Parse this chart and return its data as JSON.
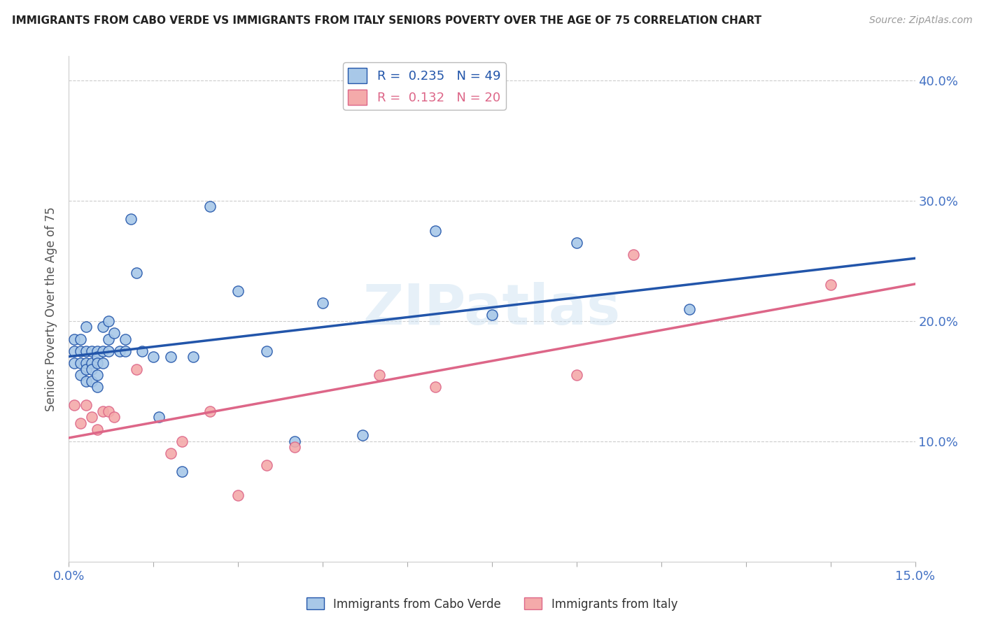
{
  "title": "IMMIGRANTS FROM CABO VERDE VS IMMIGRANTS FROM ITALY SENIORS POVERTY OVER THE AGE OF 75 CORRELATION CHART",
  "source": "Source: ZipAtlas.com",
  "ylabel": "Seniors Poverty Over the Age of 75",
  "xlim": [
    0.0,
    0.15
  ],
  "ylim": [
    0.0,
    0.42
  ],
  "ytick_values": [
    0.0,
    0.1,
    0.2,
    0.3,
    0.4
  ],
  "xtick_values": [
    0.0,
    0.015,
    0.03,
    0.045,
    0.06,
    0.075,
    0.09,
    0.105,
    0.12,
    0.135,
    0.15
  ],
  "cabo_verde_color": "#a8c8e8",
  "italy_color": "#f4aaaa",
  "cabo_verde_line_color": "#2255aa",
  "italy_line_color": "#dd6688",
  "legend_R_cabo": "0.235",
  "legend_N_cabo": "49",
  "legend_R_italy": "0.132",
  "legend_N_italy": "20",
  "cabo_verde_x": [
    0.001,
    0.001,
    0.001,
    0.002,
    0.002,
    0.002,
    0.002,
    0.003,
    0.003,
    0.003,
    0.003,
    0.003,
    0.004,
    0.004,
    0.004,
    0.004,
    0.005,
    0.005,
    0.005,
    0.005,
    0.005,
    0.006,
    0.006,
    0.006,
    0.007,
    0.007,
    0.007,
    0.008,
    0.009,
    0.01,
    0.01,
    0.011,
    0.012,
    0.013,
    0.015,
    0.016,
    0.018,
    0.02,
    0.022,
    0.025,
    0.03,
    0.035,
    0.04,
    0.045,
    0.052,
    0.065,
    0.075,
    0.09,
    0.11
  ],
  "cabo_verde_y": [
    0.185,
    0.175,
    0.165,
    0.185,
    0.175,
    0.165,
    0.155,
    0.195,
    0.175,
    0.165,
    0.16,
    0.15,
    0.175,
    0.165,
    0.16,
    0.15,
    0.175,
    0.17,
    0.165,
    0.155,
    0.145,
    0.195,
    0.175,
    0.165,
    0.2,
    0.185,
    0.175,
    0.19,
    0.175,
    0.185,
    0.175,
    0.285,
    0.24,
    0.175,
    0.17,
    0.12,
    0.17,
    0.075,
    0.17,
    0.295,
    0.225,
    0.175,
    0.1,
    0.215,
    0.105,
    0.275,
    0.205,
    0.265,
    0.21
  ],
  "italy_x": [
    0.001,
    0.002,
    0.003,
    0.004,
    0.005,
    0.006,
    0.007,
    0.008,
    0.012,
    0.018,
    0.02,
    0.025,
    0.03,
    0.035,
    0.04,
    0.055,
    0.065,
    0.09,
    0.1,
    0.135
  ],
  "italy_y": [
    0.13,
    0.115,
    0.13,
    0.12,
    0.11,
    0.125,
    0.125,
    0.12,
    0.16,
    0.09,
    0.1,
    0.125,
    0.055,
    0.08,
    0.095,
    0.155,
    0.145,
    0.155,
    0.255,
    0.23
  ],
  "background_color": "#ffffff",
  "grid_color": "#cccccc"
}
